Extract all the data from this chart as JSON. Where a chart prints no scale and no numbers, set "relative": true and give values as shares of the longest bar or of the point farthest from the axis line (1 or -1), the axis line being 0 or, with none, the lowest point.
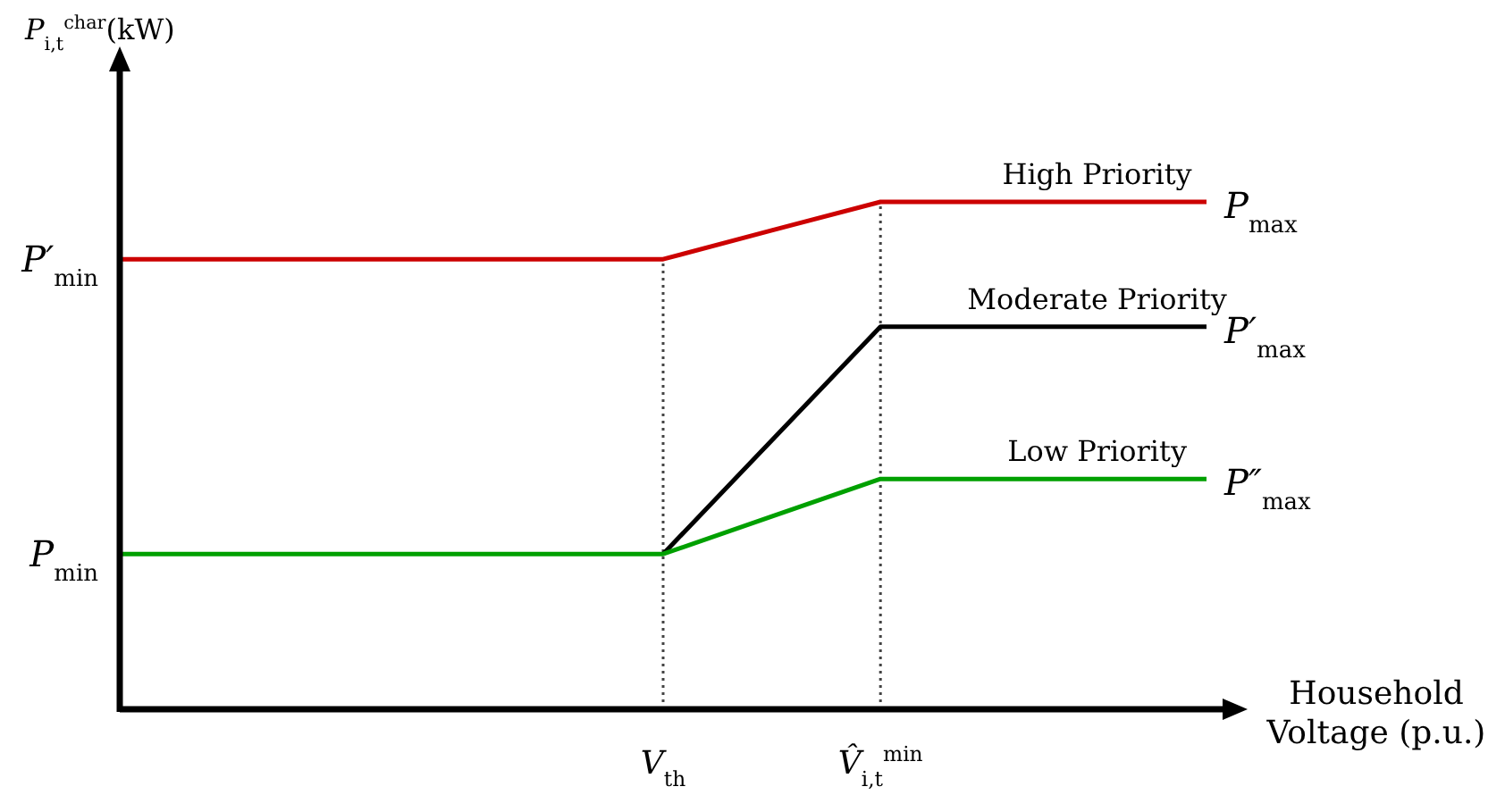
{
  "chart_data": {
    "type": "line",
    "relative": true,
    "xlabel": "Household Voltage (p.u.)",
    "categories": [
      null,
      null,
      null,
      null,
      null,
      "V$_{th}$",
      null,
      "V̂$_{i,t}$$^{min}$",
      null,
      null,
      null
    ],
    "series": [
      {
        "name": "High Priority",
        "color": "#cc0000",
        "values": [
          0.887,
          0.887,
          0.887,
          0.887,
          0.887,
          0.887,
          0.944,
          1,
          1,
          1,
          1
        ]
      },
      {
        "name": "Moderate Priority",
        "color": "#000000",
        "values": [
          null,
          null,
          null,
          null,
          null,
          0.306,
          0.53,
          0.754,
          0.754,
          0.754,
          0.754
        ]
      },
      {
        "name": "Low Priority",
        "color": "#00a000",
        "values": [
          0.306,
          0.306,
          0.306,
          0.306,
          0.306,
          0.306,
          0.38,
          0.454,
          0.454,
          0.454,
          0.454
        ]
      }
    ],
    "annotations": [
      "P′$_{min}$",
      "P$_{min}$",
      "P$_{max}$",
      "P′$_{max}$",
      "P″$_{max}$",
      "P$_{i,t}$$^{char}$(kW)"
    ],
    "ref_lines": [
      {
        "axis": "x",
        "value": "V$_{th}$",
        "line_style": "dotted",
        "color": "#444444"
      },
      {
        "axis": "x",
        "value": "V̂$_{i,t}$$^{min}$",
        "line_style": "dotted",
        "color": "#444444"
      }
    ],
    "legend": false,
    "line_style": "solid",
    "marker": "none"
  }
}
